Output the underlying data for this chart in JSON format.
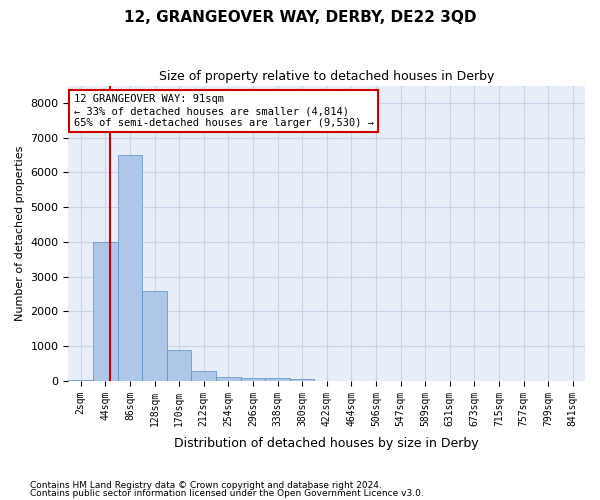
{
  "title": "12, GRANGEOVER WAY, DERBY, DE22 3QD",
  "subtitle": "Size of property relative to detached houses in Derby",
  "xlabel": "Distribution of detached houses by size in Derby",
  "ylabel": "Number of detached properties",
  "footer_line1": "Contains HM Land Registry data © Crown copyright and database right 2024.",
  "footer_line2": "Contains public sector information licensed under the Open Government Licence v3.0.",
  "bin_labels": [
    "2sqm",
    "44sqm",
    "86sqm",
    "128sqm",
    "170sqm",
    "212sqm",
    "254sqm",
    "296sqm",
    "338sqm",
    "380sqm",
    "422sqm",
    "464sqm",
    "506sqm",
    "547sqm",
    "589sqm",
    "631sqm",
    "673sqm",
    "715sqm",
    "757sqm",
    "799sqm",
    "841sqm"
  ],
  "bar_values": [
    20,
    4000,
    6500,
    2600,
    900,
    280,
    120,
    80,
    80,
    60,
    0,
    0,
    0,
    0,
    0,
    0,
    0,
    0,
    0,
    0,
    0
  ],
  "bar_color": "#aec6e8",
  "bar_edge_color": "#5a8fc0",
  "grid_color": "#c8d4e8",
  "background_color": "#e8eef8",
  "vline_x_index": 1.18,
  "vline_color": "#cc0000",
  "annotation_text": "12 GRANGEOVER WAY: 91sqm\n← 33% of detached houses are smaller (4,814)\n65% of semi-detached houses are larger (9,530) →",
  "annotation_box_color": "#cc0000",
  "ylim": [
    0,
    8500
  ],
  "yticks": [
    0,
    1000,
    2000,
    3000,
    4000,
    5000,
    6000,
    7000,
    8000
  ]
}
